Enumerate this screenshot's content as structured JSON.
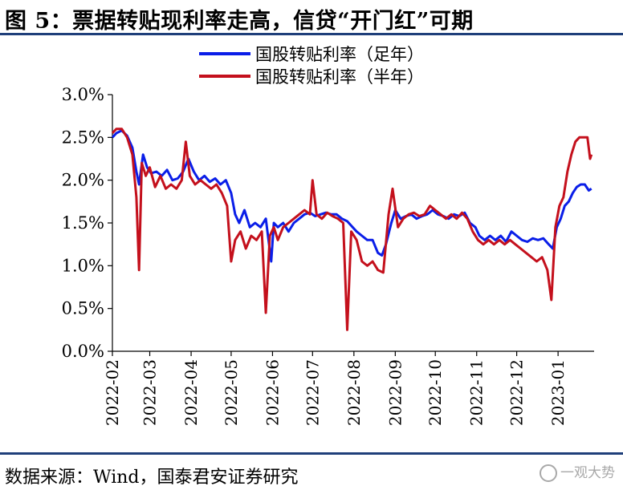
{
  "title": "图 5：票据转贴现利率走高，信贷“开门红”可期",
  "source": "数据来源：Wind，国泰君安证券研究",
  "watermark": {
    "icon": "wechat-icon",
    "text": "一观大势"
  },
  "colors": {
    "navy": "#1f3f7a",
    "blue": "#0a1ee8",
    "red": "#c4101c"
  },
  "chart_data": {
    "type": "line",
    "title": "",
    "xlabel": "",
    "ylabel": "",
    "ylim": [
      0,
      3.0
    ],
    "yticks": [
      0,
      0.5,
      1.0,
      1.5,
      2.0,
      2.5,
      3.0
    ],
    "ytick_labels": [
      "0.0%",
      "0.5%",
      "1.0%",
      "1.5%",
      "2.0%",
      "2.5%",
      "3.0%"
    ],
    "x_tick_labels": [
      "2022-02",
      "2022-03",
      "2022-04",
      "2022-05",
      "2022-06",
      "2022-07",
      "2022-08",
      "2022-09",
      "2022-10",
      "2022-11",
      "2022-12",
      "2023-01"
    ],
    "xlim": [
      "2022-02-01",
      "2023-01-28"
    ],
    "grid": false,
    "legend_position": "top",
    "series": [
      {
        "name": "国股转贴利率（足年）",
        "color": "#0a1ee8",
        "points": [
          [
            "2022-02-01",
            2.5
          ],
          [
            "2022-02-04",
            2.55
          ],
          [
            "2022-02-08",
            2.58
          ],
          [
            "2022-02-12",
            2.52
          ],
          [
            "2022-02-16",
            2.38
          ],
          [
            "2022-02-19",
            2.1
          ],
          [
            "2022-02-21",
            1.95
          ],
          [
            "2022-02-24",
            2.3
          ],
          [
            "2022-02-27",
            2.15
          ],
          [
            "2022-03-02",
            2.08
          ],
          [
            "2022-03-06",
            2.1
          ],
          [
            "2022-03-10",
            2.05
          ],
          [
            "2022-03-14",
            2.12
          ],
          [
            "2022-03-18",
            2.0
          ],
          [
            "2022-03-22",
            2.02
          ],
          [
            "2022-03-26",
            2.1
          ],
          [
            "2022-03-30",
            2.25
          ],
          [
            "2022-04-03",
            2.1
          ],
          [
            "2022-04-07",
            2.0
          ],
          [
            "2022-04-11",
            2.05
          ],
          [
            "2022-04-15",
            1.98
          ],
          [
            "2022-04-19",
            2.02
          ],
          [
            "2022-04-23",
            1.95
          ],
          [
            "2022-04-27",
            2.0
          ],
          [
            "2022-05-01",
            1.85
          ],
          [
            "2022-05-04",
            1.6
          ],
          [
            "2022-05-07",
            1.5
          ],
          [
            "2022-05-11",
            1.65
          ],
          [
            "2022-05-15",
            1.45
          ],
          [
            "2022-05-19",
            1.5
          ],
          [
            "2022-05-23",
            1.45
          ],
          [
            "2022-05-27",
            1.55
          ],
          [
            "2022-05-31",
            1.05
          ],
          [
            "2022-06-02",
            1.5
          ],
          [
            "2022-06-05",
            1.45
          ],
          [
            "2022-06-09",
            1.5
          ],
          [
            "2022-06-13",
            1.4
          ],
          [
            "2022-06-17",
            1.5
          ],
          [
            "2022-06-21",
            1.55
          ],
          [
            "2022-06-25",
            1.6
          ],
          [
            "2022-06-29",
            1.62
          ],
          [
            "2022-07-03",
            1.58
          ],
          [
            "2022-07-07",
            1.6
          ],
          [
            "2022-07-11",
            1.62
          ],
          [
            "2022-07-15",
            1.6
          ],
          [
            "2022-07-19",
            1.6
          ],
          [
            "2022-07-23",
            1.55
          ],
          [
            "2022-07-27",
            1.52
          ],
          [
            "2022-07-31",
            1.45
          ],
          [
            "2022-08-03",
            1.4
          ],
          [
            "2022-08-07",
            1.35
          ],
          [
            "2022-08-11",
            1.3
          ],
          [
            "2022-08-15",
            1.3
          ],
          [
            "2022-08-19",
            1.15
          ],
          [
            "2022-08-22",
            1.12
          ],
          [
            "2022-08-25",
            1.25
          ],
          [
            "2022-08-29",
            1.5
          ],
          [
            "2022-09-01",
            1.65
          ],
          [
            "2022-09-05",
            1.55
          ],
          [
            "2022-09-09",
            1.58
          ],
          [
            "2022-09-13",
            1.6
          ],
          [
            "2022-09-17",
            1.55
          ],
          [
            "2022-09-21",
            1.58
          ],
          [
            "2022-09-25",
            1.6
          ],
          [
            "2022-09-29",
            1.65
          ],
          [
            "2022-10-03",
            1.6
          ],
          [
            "2022-10-07",
            1.58
          ],
          [
            "2022-10-11",
            1.55
          ],
          [
            "2022-10-15",
            1.6
          ],
          [
            "2022-10-19",
            1.58
          ],
          [
            "2022-10-23",
            1.62
          ],
          [
            "2022-10-27",
            1.5
          ],
          [
            "2022-10-31",
            1.45
          ],
          [
            "2022-11-03",
            1.35
          ],
          [
            "2022-11-07",
            1.3
          ],
          [
            "2022-11-11",
            1.35
          ],
          [
            "2022-11-15",
            1.3
          ],
          [
            "2022-11-19",
            1.35
          ],
          [
            "2022-11-23",
            1.28
          ],
          [
            "2022-11-27",
            1.4
          ],
          [
            "2022-12-01",
            1.35
          ],
          [
            "2022-12-05",
            1.3
          ],
          [
            "2022-12-09",
            1.28
          ],
          [
            "2022-12-13",
            1.32
          ],
          [
            "2022-12-17",
            1.3
          ],
          [
            "2022-12-21",
            1.32
          ],
          [
            "2022-12-25",
            1.25
          ],
          [
            "2022-12-28",
            1.2
          ],
          [
            "2022-12-31",
            1.45
          ],
          [
            "2023-01-03",
            1.55
          ],
          [
            "2023-01-06",
            1.7
          ],
          [
            "2023-01-09",
            1.75
          ],
          [
            "2023-01-12",
            1.85
          ],
          [
            "2023-01-15",
            1.92
          ],
          [
            "2023-01-18",
            1.95
          ],
          [
            "2023-01-21",
            1.95
          ],
          [
            "2023-01-24",
            1.88
          ],
          [
            "2023-01-26",
            1.9
          ]
        ]
      },
      {
        "name": "国股转贴利率（半年）",
        "color": "#c4101c",
        "points": [
          [
            "2022-02-01",
            2.55
          ],
          [
            "2022-02-04",
            2.6
          ],
          [
            "2022-02-08",
            2.6
          ],
          [
            "2022-02-12",
            2.5
          ],
          [
            "2022-02-16",
            2.3
          ],
          [
            "2022-02-19",
            1.8
          ],
          [
            "2022-02-21",
            0.95
          ],
          [
            "2022-02-23",
            2.2
          ],
          [
            "2022-02-26",
            2.05
          ],
          [
            "2022-03-01",
            2.15
          ],
          [
            "2022-03-05",
            1.92
          ],
          [
            "2022-03-09",
            2.05
          ],
          [
            "2022-03-13",
            1.9
          ],
          [
            "2022-03-17",
            1.95
          ],
          [
            "2022-03-21",
            1.9
          ],
          [
            "2022-03-25",
            2.0
          ],
          [
            "2022-03-28",
            2.45
          ],
          [
            "2022-03-31",
            2.05
          ],
          [
            "2022-04-04",
            1.95
          ],
          [
            "2022-04-08",
            2.0
          ],
          [
            "2022-04-12",
            1.95
          ],
          [
            "2022-04-16",
            1.9
          ],
          [
            "2022-04-20",
            1.95
          ],
          [
            "2022-04-24",
            1.85
          ],
          [
            "2022-04-28",
            1.7
          ],
          [
            "2022-05-01",
            1.05
          ],
          [
            "2022-05-04",
            1.3
          ],
          [
            "2022-05-08",
            1.4
          ],
          [
            "2022-05-12",
            1.2
          ],
          [
            "2022-05-16",
            1.35
          ],
          [
            "2022-05-20",
            1.3
          ],
          [
            "2022-05-24",
            1.4
          ],
          [
            "2022-05-27",
            0.45
          ],
          [
            "2022-05-30",
            1.35
          ],
          [
            "2022-06-02",
            1.45
          ],
          [
            "2022-06-05",
            1.3
          ],
          [
            "2022-06-09",
            1.45
          ],
          [
            "2022-06-13",
            1.5
          ],
          [
            "2022-06-17",
            1.55
          ],
          [
            "2022-06-21",
            1.6
          ],
          [
            "2022-06-25",
            1.65
          ],
          [
            "2022-06-29",
            1.6
          ],
          [
            "2022-07-01",
            2.0
          ],
          [
            "2022-07-04",
            1.6
          ],
          [
            "2022-07-08",
            1.55
          ],
          [
            "2022-07-12",
            1.62
          ],
          [
            "2022-07-16",
            1.58
          ],
          [
            "2022-07-20",
            1.55
          ],
          [
            "2022-07-24",
            1.5
          ],
          [
            "2022-07-27",
            0.25
          ],
          [
            "2022-07-30",
            1.4
          ],
          [
            "2022-08-03",
            1.3
          ],
          [
            "2022-08-07",
            1.05
          ],
          [
            "2022-08-11",
            1.0
          ],
          [
            "2022-08-15",
            1.05
          ],
          [
            "2022-08-19",
            0.95
          ],
          [
            "2022-08-23",
            0.92
          ],
          [
            "2022-08-27",
            1.6
          ],
          [
            "2022-08-30",
            1.9
          ],
          [
            "2022-09-03",
            1.45
          ],
          [
            "2022-09-07",
            1.55
          ],
          [
            "2022-09-11",
            1.6
          ],
          [
            "2022-09-15",
            1.62
          ],
          [
            "2022-09-19",
            1.58
          ],
          [
            "2022-09-23",
            1.6
          ],
          [
            "2022-09-27",
            1.7
          ],
          [
            "2022-10-01",
            1.65
          ],
          [
            "2022-10-05",
            1.6
          ],
          [
            "2022-10-09",
            1.55
          ],
          [
            "2022-10-13",
            1.6
          ],
          [
            "2022-10-17",
            1.55
          ],
          [
            "2022-10-21",
            1.62
          ],
          [
            "2022-10-25",
            1.55
          ],
          [
            "2022-10-29",
            1.4
          ],
          [
            "2022-11-02",
            1.3
          ],
          [
            "2022-11-06",
            1.25
          ],
          [
            "2022-11-10",
            1.3
          ],
          [
            "2022-11-14",
            1.25
          ],
          [
            "2022-11-18",
            1.3
          ],
          [
            "2022-11-22",
            1.25
          ],
          [
            "2022-11-26",
            1.3
          ],
          [
            "2022-11-30",
            1.25
          ],
          [
            "2022-12-04",
            1.2
          ],
          [
            "2022-12-08",
            1.15
          ],
          [
            "2022-12-12",
            1.1
          ],
          [
            "2022-12-16",
            1.05
          ],
          [
            "2022-12-20",
            1.1
          ],
          [
            "2022-12-24",
            0.95
          ],
          [
            "2022-12-27",
            0.6
          ],
          [
            "2022-12-30",
            1.45
          ],
          [
            "2023-01-02",
            1.7
          ],
          [
            "2023-01-05",
            1.8
          ],
          [
            "2023-01-08",
            2.1
          ],
          [
            "2023-01-11",
            2.3
          ],
          [
            "2023-01-14",
            2.45
          ],
          [
            "2023-01-17",
            2.5
          ],
          [
            "2023-01-20",
            2.5
          ],
          [
            "2023-01-23",
            2.5
          ],
          [
            "2023-01-25",
            2.25
          ],
          [
            "2023-01-26",
            2.3
          ]
        ]
      }
    ]
  }
}
